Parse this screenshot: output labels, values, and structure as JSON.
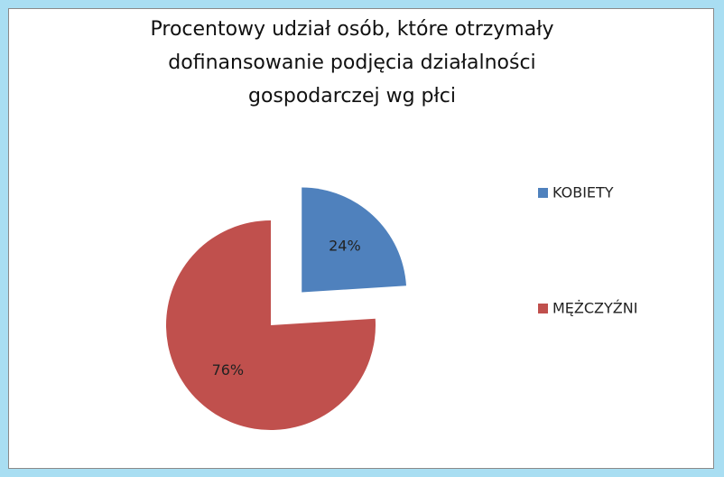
{
  "chart_data": {
    "type": "pie",
    "title": "Procentowy udział osób, które otrzymały dofinansowanie podjęcia działalności gospodarczej wg płci",
    "categories": [
      "KOBIETY",
      "MĘŻCZYŹNI"
    ],
    "values": [
      24,
      76
    ],
    "value_labels": [
      "24%",
      "76%"
    ],
    "colors": [
      "#4f81bd",
      "#c0504d"
    ],
    "legend": "right"
  }
}
